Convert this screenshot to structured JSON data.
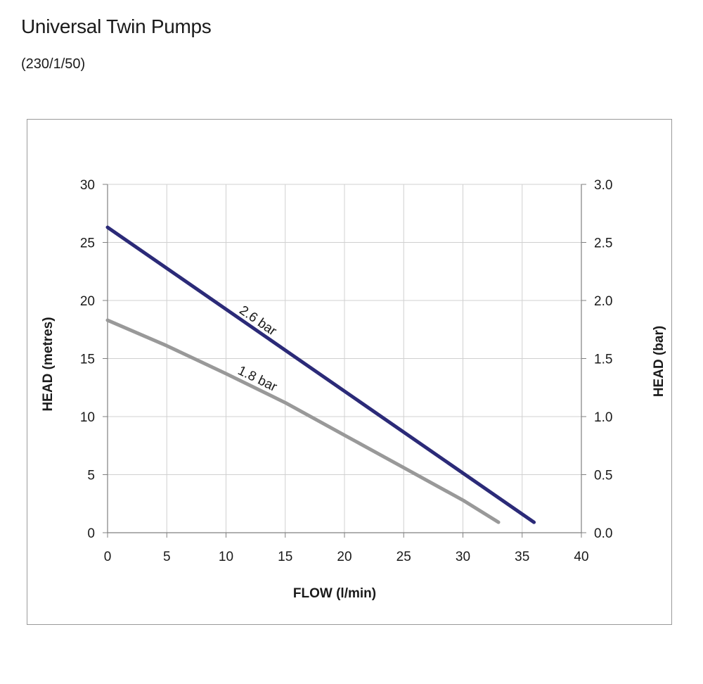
{
  "header": {
    "title": "Universal Twin Pumps",
    "subtitle": "(230/1/50)"
  },
  "colors": {
    "series_2_6": "#2b2a78",
    "series_1_8": "#999999",
    "grid": "#d0d0d0",
    "axis": "#808080"
  },
  "chart_data": {
    "type": "line",
    "title": "",
    "xlabel": "FLOW (l/min)",
    "ylabel": "HEAD (metres)",
    "y2label": "HEAD (bar)",
    "xlim": [
      0,
      40
    ],
    "ylim": [
      0,
      30
    ],
    "y2lim": [
      0.0,
      3.0
    ],
    "xticks": [
      "0",
      "5",
      "10",
      "15",
      "20",
      "25",
      "30",
      "35",
      "40"
    ],
    "yticks": [
      "0",
      "5",
      "10",
      "15",
      "20",
      "25",
      "30"
    ],
    "y2ticks": [
      "0.0",
      "0.5",
      "1.0",
      "1.5",
      "2.0",
      "2.5",
      "3.0"
    ],
    "grid": true,
    "series": [
      {
        "name": "2.6 bar",
        "x": [
          0,
          36
        ],
        "y": [
          26.3,
          0.9
        ]
      },
      {
        "name": "1.8 bar",
        "x": [
          0,
          5,
          10,
          15,
          20,
          25,
          30,
          33
        ],
        "y": [
          18.3,
          16.1,
          13.7,
          11.2,
          8.4,
          5.6,
          2.8,
          0.9
        ]
      }
    ]
  }
}
